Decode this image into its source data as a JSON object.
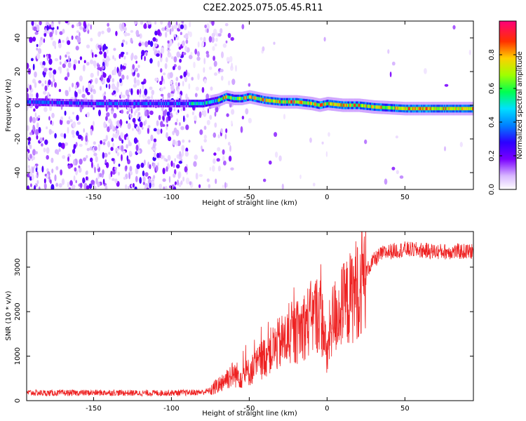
{
  "figure": {
    "title": "C2E2.2025.075.05.45.R11"
  },
  "chart_data": [
    {
      "type": "heatmap",
      "xlabel": "Height of straight line (km)",
      "ylabel": "Frequency (Hz)",
      "xlim": [
        -193,
        94
      ],
      "ylim": [
        -50,
        50
      ],
      "xticks": [
        -150,
        -100,
        -50,
        0,
        50
      ],
      "yticks": [
        -40,
        -20,
        0,
        20,
        40
      ],
      "colorbar": {
        "label": "Normalized spectral amplitude",
        "range": [
          0,
          1
        ],
        "ticks": [
          "0.0",
          "0.2",
          "0.4",
          "0.6",
          "0.8"
        ],
        "colors": [
          "#ffffff",
          "#ab47ff",
          "#3b00ff",
          "#0070ff",
          "#00d8ff",
          "#00ff60",
          "#c8ff00",
          "#ffa000",
          "#ff2000",
          "#ff007a"
        ]
      },
      "ridge": {
        "x": [
          -193,
          -150,
          -100,
          -80,
          -70,
          -65,
          -60,
          -55,
          -50,
          -40,
          -30,
          -20,
          -10,
          -5,
          0,
          10,
          20,
          30,
          50,
          70,
          94
        ],
        "y": [
          2,
          1,
          1,
          1,
          3,
          5,
          4,
          4,
          5,
          3,
          2,
          2,
          1,
          0,
          1,
          0,
          0,
          -1,
          -2,
          -2,
          -2
        ]
      },
      "grid": false
    },
    {
      "type": "line",
      "xlabel": "Height of straight line (km)",
      "ylabel": "SNR (10 * v/v)",
      "xlim": [
        -193,
        94
      ],
      "ylim": [
        0,
        3800
      ],
      "xticks": [
        -150,
        -100,
        -50,
        0,
        50
      ],
      "yticks": [
        0,
        1000,
        2000,
        3000
      ],
      "color": "#ee2222",
      "series": [
        {
          "x": [
            -193,
            -180,
            -160,
            -140,
            -120,
            -100,
            -90,
            -80,
            -75,
            -70,
            -65,
            -60,
            -55,
            -50,
            -45,
            -40,
            -35,
            -30,
            -25,
            -20,
            -15,
            -10,
            -5,
            -2,
            0,
            2,
            5,
            10,
            15,
            20,
            25,
            30,
            35,
            40,
            50,
            60,
            70,
            80,
            94
          ],
          "y": [
            180,
            170,
            175,
            180,
            170,
            175,
            180,
            190,
            230,
            350,
            500,
            600,
            550,
            650,
            800,
            1000,
            1150,
            1300,
            1400,
            1500,
            1700,
            1850,
            2000,
            1600,
            900,
            1700,
            1900,
            2100,
            2300,
            2600,
            2900,
            3150,
            3300,
            3350,
            3400,
            3380,
            3350,
            3350,
            3350
          ]
        }
      ],
      "grid": false
    }
  ]
}
